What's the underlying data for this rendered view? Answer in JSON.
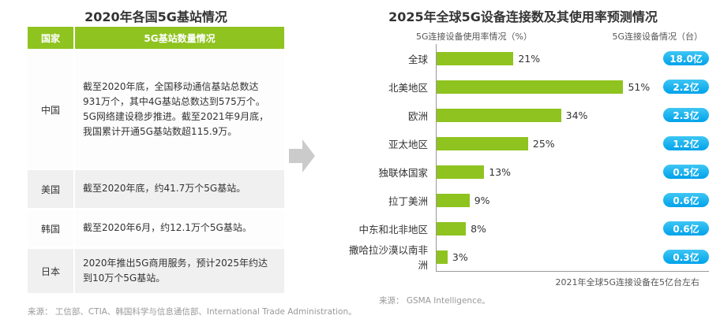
{
  "page": {
    "background": "#ffffff"
  },
  "colors": {
    "bar_green": "#8fc31f",
    "header_green": "#8fc31f",
    "badge_blue": "#00a2ea",
    "arrow_gray": "#cbcbcb",
    "axis_gray": "#999999"
  },
  "left_panel": {
    "title": "2020年各国5G基站情况",
    "table": {
      "headers": [
        "国家",
        "5G基站数量情况"
      ],
      "rows": [
        {
          "country": "中国",
          "detail": "截至2020年底，全国移动通信基站总数达931万个，其中4G基站总数达到575万个。5G网络建设稳步推进。截至2021年9月底，我国累计开通5G基站数超115.9万。"
        },
        {
          "country": "美国",
          "detail": "截至2020年底，约41.7万个5G基站。"
        },
        {
          "country": "韩国",
          "detail": "截至2020年6月，约12.1万个5G基站。"
        },
        {
          "country": "日本",
          "detail": "2020年推出5G商用服务，预计2025年约达到10万个5G基站。"
        }
      ]
    },
    "source": "来源： 工信部、CTIA、韩国科学与信息通信部、International Trade Administration。"
  },
  "right_panel": {
    "title": "2025年全球5G设备连接数及其使用率预测情况",
    "usage_header": "5G连接设备使用率情况（%）",
    "devices_header": "5G连接设备情况（台）",
    "note": "2021年全球5G连接设备在5亿台左右",
    "source": "来源： GSMA Intelligence。"
  },
  "chart_data": {
    "type": "bar",
    "orientation": "horizontal",
    "title": "2025年全球5G设备连接数及其使用率预测情况",
    "categories": [
      "全球",
      "北美地区",
      "欧洲",
      "亚太地区",
      "独联体国家",
      "拉丁美洲",
      "中东和北非地区",
      "撒哈拉沙漠以南非洲"
    ],
    "series": [
      {
        "name": "5G连接设备使用率情况（%）",
        "unit": "%",
        "values": [
          21,
          51,
          34,
          25,
          13,
          9,
          8,
          3
        ]
      },
      {
        "name": "5G连接设备情况（台）",
        "unit": "亿",
        "values": [
          18.0,
          2.2,
          2.3,
          1.2,
          0.5,
          0.6,
          0.6,
          0.3
        ],
        "labels": [
          "18.0亿",
          "2.2亿",
          "2.3亿",
          "1.2亿",
          "0.5亿",
          "0.6亿",
          "0.6亿",
          "0.3亿"
        ]
      }
    ],
    "xlim": [
      0,
      55
    ],
    "grid": false,
    "legend_position": "none",
    "annotation": "2021年全球5G连接设备在5亿台左右"
  }
}
